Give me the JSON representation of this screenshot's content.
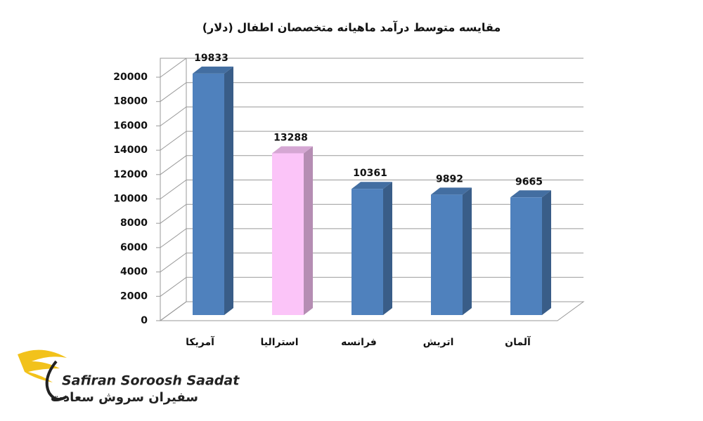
{
  "chart_data": {
    "type": "bar3d",
    "title": "مقایسه متوسط درآمد ماهیانه متخصصان اطفال (دلار)",
    "categories": [
      "آمریکا",
      "استرالیا",
      "فرانسه",
      "اتریش",
      "آلمان"
    ],
    "values": [
      19833,
      13288,
      10361,
      9892,
      9665
    ],
    "colors": [
      "#4f81bd",
      "#fbc4f8",
      "#4f81bd",
      "#4f81bd",
      "#4f81bd"
    ],
    "ylim": [
      0,
      20000
    ],
    "yticks": [
      0,
      2000,
      4000,
      6000,
      8000,
      10000,
      12000,
      14000,
      16000,
      18000,
      20000
    ],
    "grid": true,
    "show_values": true
  },
  "logo": {
    "name_en": "Safiran Soroosh Saadat",
    "name_fa": "سفیران سروش سعادت"
  }
}
